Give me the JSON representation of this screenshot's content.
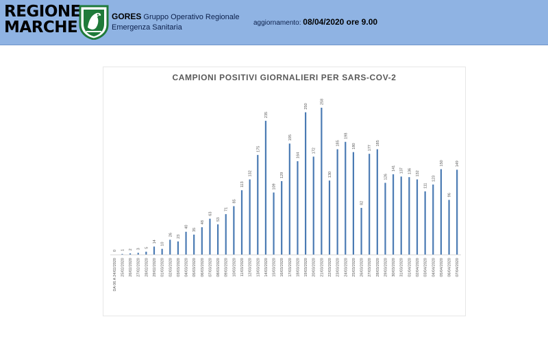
{
  "header": {
    "logo_line1": "REGIONE",
    "logo_line2": "MARCHE",
    "org_short": "GORES",
    "org_line1_rest": "Gruppo Operativo Regionale",
    "org_line2": "Emergenza Sanitaria",
    "update_label": "aggiornamento:",
    "update_value": "08/04/2020 ore 9.00",
    "colors": {
      "bar": "#8fb3e3",
      "emblem_green": "#1f7a3a"
    }
  },
  "chart_data": {
    "type": "bar",
    "title": "CAMPIONI POSITIVI GIORNALIERI PER SARS-COV-2",
    "xlabel": "",
    "ylabel": "",
    "grid": false,
    "bar_color": "#4a7ab3",
    "categories": [
      "DA 06 A 24/02/2020",
      "25/02/2020",
      "26/02/2020",
      "27/02/2020",
      "28/02/2020",
      "29/02/2020",
      "01/03/2020",
      "02/03/2020",
      "03/03/2020",
      "04/03/2020",
      "05/03/2020",
      "06/03/2020",
      "07/03/2020",
      "08/03/2020",
      "09/03/2020",
      "10/03/2020",
      "11/03/2020",
      "12/03/2020",
      "13/03/2020",
      "14/03/2020",
      "15/03/2020",
      "16/03/2020",
      "17/03/2020",
      "18/03/2020",
      "19/03/2020",
      "20/03/2020",
      "21/03/2020",
      "22/03/2020",
      "23/03/2020",
      "24/03/2020",
      "25/03/2020",
      "26/03/2020",
      "27/03/2020",
      "28/03/2020",
      "29/03/2020",
      "30/03/2020",
      "31/03/2020",
      "01/04/2020",
      "02/04/2020",
      "03/04/2020",
      "04/04/2020",
      "05/04/2020",
      "06/04/2020",
      "07/04/2020"
    ],
    "values": [
      0,
      1,
      2,
      3,
      5,
      14,
      10,
      26,
      23,
      40,
      35,
      48,
      63,
      53,
      71,
      85,
      113,
      132,
      175,
      235,
      109,
      129,
      195,
      164,
      250,
      172,
      258,
      130,
      185,
      198,
      180,
      82,
      177,
      185,
      126,
      141,
      137,
      136,
      132,
      111,
      123,
      150,
      96,
      149
    ],
    "ylim": [
      0,
      258
    ]
  }
}
